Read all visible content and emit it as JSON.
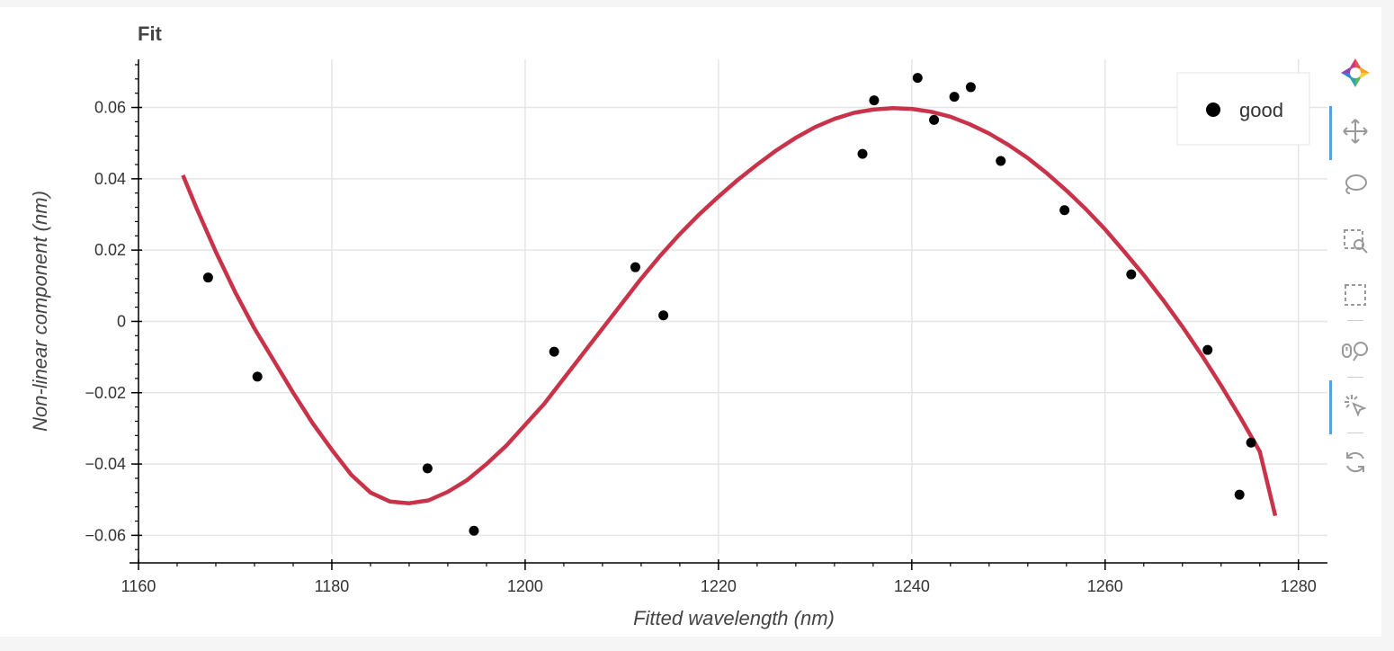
{
  "title": "Fit",
  "chart_data": {
    "type": "scatter",
    "xlabel": "Fitted wavelength (nm)",
    "ylabel": "Non-linear component (nm)",
    "xlim": [
      1160,
      1283
    ],
    "ylim": [
      -0.0652,
      0.0735
    ],
    "x_ticks": [
      1160,
      1180,
      1200,
      1220,
      1240,
      1260,
      1280
    ],
    "x_tick_labels": [
      "1160",
      "1180",
      "1200",
      "1220",
      "1240",
      "1260",
      "1280"
    ],
    "y_ticks": [
      -0.06,
      -0.04,
      -0.02,
      0,
      0.02,
      0.04,
      0.06
    ],
    "y_tick_labels": [
      "−0.06",
      "−0.04",
      "−0.02",
      "0",
      "0.02",
      "0.04",
      "0.06"
    ],
    "grid": true,
    "legend_position": "top-right",
    "series": [
      {
        "name": "good",
        "kind": "scatter",
        "color": "#000000",
        "points": [
          [
            1167.2,
            0.0123
          ],
          [
            1172.3,
            -0.0155
          ],
          [
            1189.9,
            -0.0412
          ],
          [
            1194.7,
            -0.0587
          ],
          [
            1203.0,
            -0.0085
          ],
          [
            1211.4,
            0.0152
          ],
          [
            1214.3,
            0.0017
          ],
          [
            1234.9,
            0.047
          ],
          [
            1236.1,
            0.062
          ],
          [
            1240.6,
            0.0683
          ],
          [
            1242.3,
            0.0565
          ],
          [
            1244.4,
            0.063
          ],
          [
            1246.1,
            0.0657
          ],
          [
            1249.2,
            0.045
          ],
          [
            1255.8,
            0.0312
          ],
          [
            1262.7,
            0.0132
          ],
          [
            1270.6,
            -0.008
          ],
          [
            1273.9,
            -0.0486
          ],
          [
            1275.1,
            -0.034
          ]
        ]
      },
      {
        "kind": "line",
        "color": "#c8334a",
        "points": [
          [
            1164.6,
            0.041
          ],
          [
            1166,
            0.0318
          ],
          [
            1168,
            0.0195
          ],
          [
            1170,
            0.0082
          ],
          [
            1172,
            -0.002
          ],
          [
            1174,
            -0.011
          ],
          [
            1176,
            -0.02
          ],
          [
            1178,
            -0.0285
          ],
          [
            1180,
            -0.036
          ],
          [
            1182,
            -0.043
          ],
          [
            1184,
            -0.048
          ],
          [
            1186,
            -0.0505
          ],
          [
            1188,
            -0.051
          ],
          [
            1190,
            -0.0502
          ],
          [
            1192,
            -0.0478
          ],
          [
            1194,
            -0.0445
          ],
          [
            1196,
            -0.04
          ],
          [
            1198,
            -0.035
          ],
          [
            1200,
            -0.029
          ],
          [
            1202,
            -0.023
          ],
          [
            1204,
            -0.016
          ],
          [
            1206,
            -0.009
          ],
          [
            1208,
            -0.002
          ],
          [
            1210,
            0.005
          ],
          [
            1212,
            0.012
          ],
          [
            1214,
            0.0185
          ],
          [
            1216,
            0.0245
          ],
          [
            1218,
            0.03
          ],
          [
            1220,
            0.035
          ],
          [
            1222,
            0.0397
          ],
          [
            1224,
            0.044
          ],
          [
            1226,
            0.048
          ],
          [
            1228,
            0.0515
          ],
          [
            1230,
            0.0545
          ],
          [
            1232,
            0.0568
          ],
          [
            1234,
            0.0585
          ],
          [
            1236,
            0.0594
          ],
          [
            1238,
            0.0598
          ],
          [
            1240,
            0.0596
          ],
          [
            1242,
            0.0588
          ],
          [
            1244,
            0.0574
          ],
          [
            1246,
            0.0553
          ],
          [
            1248,
            0.0527
          ],
          [
            1250,
            0.0495
          ],
          [
            1252,
            0.0458
          ],
          [
            1254,
            0.0415
          ],
          [
            1256,
            0.0367
          ],
          [
            1258,
            0.0315
          ],
          [
            1260,
            0.0258
          ],
          [
            1262,
            0.0195
          ],
          [
            1264,
            0.013
          ],
          [
            1266,
            0.006
          ],
          [
            1268,
            -0.0015
          ],
          [
            1270,
            -0.0095
          ],
          [
            1272,
            -0.018
          ],
          [
            1274,
            -0.027
          ],
          [
            1276,
            -0.0365
          ],
          [
            1277.6,
            -0.0545
          ]
        ]
      }
    ]
  },
  "toolbar": {
    "tools": [
      {
        "name": "bokeh-logo-icon",
        "active": false
      },
      {
        "name": "pan-tool-icon",
        "active": true
      },
      {
        "name": "lasso-select-icon",
        "active": false
      },
      {
        "name": "box-zoom-icon",
        "active": false
      },
      {
        "name": "box-select-icon",
        "active": false
      },
      {
        "name": "wheel-zoom-icon",
        "active": false
      },
      {
        "name": "tap-tool-icon",
        "active": true
      },
      {
        "name": "reset-icon",
        "active": false
      }
    ]
  }
}
